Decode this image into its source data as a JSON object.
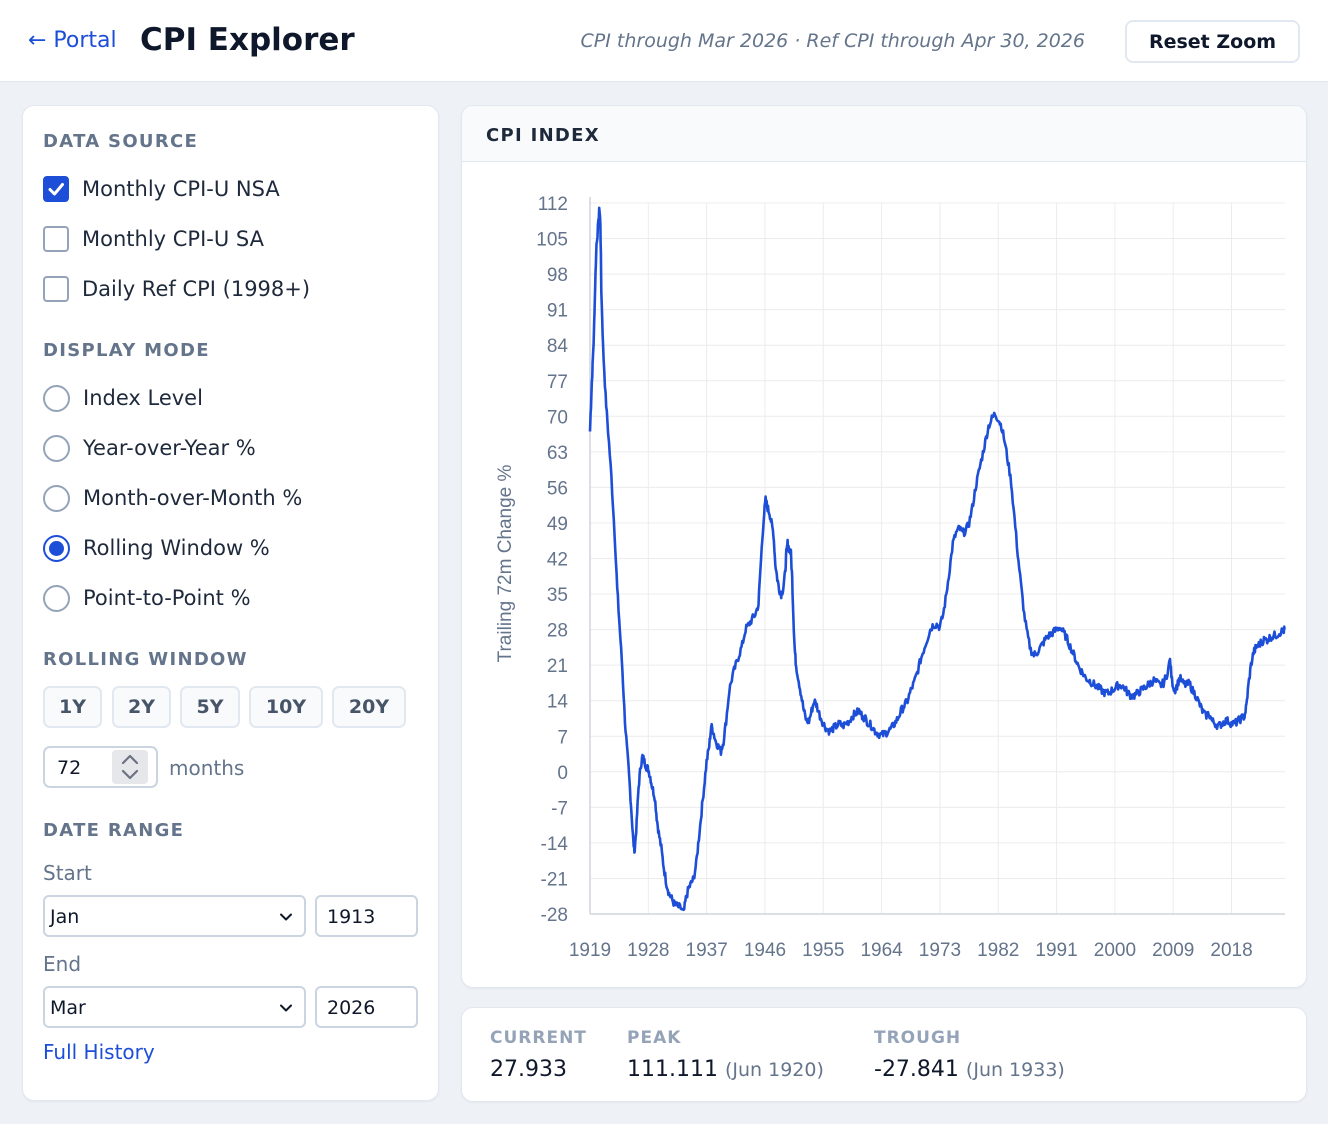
{
  "header": {
    "back_label": "← Portal",
    "title": "CPI Explorer",
    "data_status": "CPI through Mar 2026 · Ref CPI through Apr 30, 2026",
    "reset_label": "Reset Zoom"
  },
  "sidebar": {
    "data_source_title": "DATA SOURCE",
    "sources": [
      {
        "label": "Monthly CPI-U NSA",
        "checked": true
      },
      {
        "label": "Monthly CPI-U SA",
        "checked": false
      },
      {
        "label": "Daily Ref CPI (1998+)",
        "checked": false
      }
    ],
    "display_mode_title": "DISPLAY MODE",
    "modes": [
      {
        "label": "Index Level",
        "selected": false
      },
      {
        "label": "Year-over-Year %",
        "selected": false
      },
      {
        "label": "Month-over-Month %",
        "selected": false
      },
      {
        "label": "Rolling Window %",
        "selected": true
      },
      {
        "label": "Point-to-Point %",
        "selected": false
      }
    ],
    "rolling_window_title": "ROLLING WINDOW",
    "window_buttons": [
      "1Y",
      "2Y",
      "5Y",
      "10Y",
      "20Y"
    ],
    "months_value": "72",
    "months_unit": "months",
    "date_range_title": "DATE RANGE",
    "start_label": "Start",
    "start_month": "Jan",
    "start_year": "1913",
    "end_label": "End",
    "end_month": "Mar",
    "end_year": "2026",
    "full_history_label": "Full History"
  },
  "chart": {
    "panel_title": "CPI INDEX"
  },
  "stats": {
    "current_label": "CURRENT",
    "current_value": "27.933",
    "peak_label": "PEAK",
    "peak_value": "111.111",
    "peak_date": "(Jun 1920)",
    "trough_label": "TROUGH",
    "trough_value": "-27.841",
    "trough_date": "(Jun 1933)"
  },
  "colors": {
    "accent": "#1d4ed8",
    "line": "#1d4ed8",
    "grid": "#ececec"
  },
  "chart_data": {
    "type": "line",
    "title": "CPI INDEX",
    "ylabel": "Trailing 72m Change %",
    "xlabel": "",
    "ylim": [
      -28,
      112
    ],
    "xlim": [
      1919,
      2026.25
    ],
    "y_ticks": [
      112,
      105,
      98,
      91,
      84,
      77,
      70,
      63,
      56,
      49,
      42,
      35,
      28,
      21,
      14,
      7,
      0,
      -7,
      -14,
      -21,
      -28
    ],
    "x_ticks": [
      1919,
      1928,
      1937,
      1946,
      1955,
      1964,
      1973,
      1982,
      1991,
      2000,
      2009,
      2018
    ],
    "grid": true,
    "series": [
      {
        "name": "Trailing 72m Change %",
        "points": [
          [
            1919.0,
            67
          ],
          [
            1919.2,
            74
          ],
          [
            1919.4,
            80
          ],
          [
            1919.6,
            86
          ],
          [
            1919.8,
            96
          ],
          [
            1920.0,
            104
          ],
          [
            1920.3,
            108
          ],
          [
            1920.45,
            111.1
          ],
          [
            1920.6,
            108
          ],
          [
            1920.75,
            95
          ],
          [
            1921.0,
            84
          ],
          [
            1921.4,
            74
          ],
          [
            1921.8,
            67
          ],
          [
            1922.3,
            58
          ],
          [
            1922.8,
            47
          ],
          [
            1923.2,
            36
          ],
          [
            1923.6,
            28
          ],
          [
            1924.0,
            20
          ],
          [
            1924.4,
            10
          ],
          [
            1924.8,
            3
          ],
          [
            1925.1,
            -2
          ],
          [
            1925.4,
            -8
          ],
          [
            1925.7,
            -14
          ],
          [
            1925.9,
            -15.5
          ],
          [
            1926.2,
            -10
          ],
          [
            1926.5,
            -3
          ],
          [
            1926.8,
            1
          ],
          [
            1927.1,
            3
          ],
          [
            1927.4,
            2
          ],
          [
            1927.7,
            1
          ],
          [
            1928.0,
            0.5
          ],
          [
            1928.3,
            -1
          ],
          [
            1928.6,
            -3
          ],
          [
            1929.0,
            -5
          ],
          [
            1929.3,
            -9
          ],
          [
            1929.6,
            -12
          ],
          [
            1930.0,
            -15
          ],
          [
            1930.4,
            -19
          ],
          [
            1930.8,
            -22
          ],
          [
            1931.2,
            -24
          ],
          [
            1931.6,
            -25
          ],
          [
            1932.0,
            -26
          ],
          [
            1932.5,
            -26.5
          ],
          [
            1933.0,
            -26.8
          ],
          [
            1933.45,
            -27.84
          ],
          [
            1933.8,
            -25
          ],
          [
            1934.2,
            -23
          ],
          [
            1934.6,
            -22
          ],
          [
            1935.0,
            -21
          ],
          [
            1935.4,
            -18
          ],
          [
            1935.8,
            -13
          ],
          [
            1936.2,
            -8
          ],
          [
            1936.6,
            -3
          ],
          [
            1937.0,
            2
          ],
          [
            1937.4,
            5
          ],
          [
            1937.7,
            9
          ],
          [
            1938.0,
            8
          ],
          [
            1938.4,
            6
          ],
          [
            1938.8,
            5
          ],
          [
            1939.2,
            4
          ],
          [
            1939.6,
            6
          ],
          [
            1940.0,
            10
          ],
          [
            1940.5,
            16
          ],
          [
            1941.0,
            19
          ],
          [
            1941.5,
            21
          ],
          [
            1942.0,
            23
          ],
          [
            1942.5,
            25
          ],
          [
            1943.0,
            28
          ],
          [
            1943.5,
            29
          ],
          [
            1944.0,
            30
          ],
          [
            1944.5,
            31
          ],
          [
            1945.0,
            33
          ],
          [
            1945.4,
            42
          ],
          [
            1945.8,
            50
          ],
          [
            1946.1,
            53.5
          ],
          [
            1946.4,
            52
          ],
          [
            1946.7,
            51
          ],
          [
            1947.0,
            49
          ],
          [
            1947.3,
            47
          ],
          [
            1947.6,
            41
          ],
          [
            1947.9,
            38
          ],
          [
            1948.2,
            36
          ],
          [
            1948.5,
            35
          ],
          [
            1948.8,
            36
          ],
          [
            1949.1,
            39
          ],
          [
            1949.3,
            43
          ],
          [
            1949.5,
            45
          ],
          [
            1949.7,
            44
          ],
          [
            1950.0,
            43
          ],
          [
            1950.2,
            38
          ],
          [
            1950.4,
            30
          ],
          [
            1950.6,
            24
          ],
          [
            1950.8,
            21
          ],
          [
            1951.2,
            18
          ],
          [
            1951.6,
            15
          ],
          [
            1952.0,
            12
          ],
          [
            1952.4,
            10
          ],
          [
            1952.8,
            10
          ],
          [
            1953.2,
            12
          ],
          [
            1953.6,
            14
          ],
          [
            1954.0,
            13
          ],
          [
            1954.5,
            11
          ],
          [
            1955.0,
            9.5
          ],
          [
            1955.5,
            8.5
          ],
          [
            1956.0,
            8
          ],
          [
            1956.5,
            8.5
          ],
          [
            1957.0,
            9
          ],
          [
            1957.5,
            9.5
          ],
          [
            1958.0,
            9
          ],
          [
            1958.5,
            9.5
          ],
          [
            1959.0,
            10
          ],
          [
            1959.5,
            11
          ],
          [
            1960.0,
            11.5
          ],
          [
            1960.5,
            12
          ],
          [
            1961.0,
            11
          ],
          [
            1961.5,
            10.5
          ],
          [
            1962.0,
            9.5
          ],
          [
            1962.5,
            9
          ],
          [
            1963.0,
            8
          ],
          [
            1963.5,
            7.5
          ],
          [
            1964.0,
            7.2
          ],
          [
            1964.5,
            7.5
          ],
          [
            1965.0,
            8
          ],
          [
            1965.5,
            8.5
          ],
          [
            1966.0,
            9.5
          ],
          [
            1966.5,
            10.5
          ],
          [
            1967.0,
            12
          ],
          [
            1967.5,
            13
          ],
          [
            1968.0,
            14
          ],
          [
            1968.5,
            16
          ],
          [
            1969.0,
            17.5
          ],
          [
            1969.5,
            19.5
          ],
          [
            1970.0,
            22
          ],
          [
            1970.5,
            24
          ],
          [
            1971.0,
            26
          ],
          [
            1971.5,
            28
          ],
          [
            1972.0,
            29
          ],
          [
            1972.5,
            29
          ],
          [
            1973.0,
            28.5
          ],
          [
            1973.5,
            31
          ],
          [
            1974.0,
            35
          ],
          [
            1974.5,
            40
          ],
          [
            1975.0,
            45
          ],
          [
            1975.5,
            47
          ],
          [
            1976.0,
            48
          ],
          [
            1976.5,
            47
          ],
          [
            1977.0,
            47.5
          ],
          [
            1977.5,
            49
          ],
          [
            1978.0,
            52
          ],
          [
            1978.5,
            56
          ],
          [
            1979.0,
            59
          ],
          [
            1979.5,
            62
          ],
          [
            1980.0,
            65
          ],
          [
            1980.5,
            68
          ],
          [
            1981.0,
            69.5
          ],
          [
            1981.5,
            70.5
          ],
          [
            1982.0,
            69.5
          ],
          [
            1982.5,
            68
          ],
          [
            1983.0,
            65
          ],
          [
            1983.5,
            61
          ],
          [
            1984.0,
            57
          ],
          [
            1984.5,
            50
          ],
          [
            1985.0,
            43
          ],
          [
            1985.5,
            37
          ],
          [
            1986.0,
            31
          ],
          [
            1986.5,
            27
          ],
          [
            1987.0,
            24
          ],
          [
            1987.5,
            23
          ],
          [
            1988.0,
            23.5
          ],
          [
            1988.5,
            24.5
          ],
          [
            1989.0,
            25.5
          ],
          [
            1989.5,
            26.5
          ],
          [
            1990.0,
            27
          ],
          [
            1990.5,
            27.5
          ],
          [
            1991.0,
            28
          ],
          [
            1991.5,
            28.5
          ],
          [
            1992.0,
            27.5
          ],
          [
            1992.5,
            26.5
          ],
          [
            1993.0,
            25
          ],
          [
            1993.5,
            23.5
          ],
          [
            1994.0,
            22
          ],
          [
            1994.5,
            20.5
          ],
          [
            1995.0,
            19.5
          ],
          [
            1995.5,
            18.5
          ],
          [
            1996.0,
            18
          ],
          [
            1996.5,
            17.5
          ],
          [
            1997.0,
            17
          ],
          [
            1997.5,
            16.5
          ],
          [
            1998.0,
            16
          ],
          [
            1998.5,
            15.5
          ],
          [
            1999.0,
            15.5
          ],
          [
            1999.5,
            16
          ],
          [
            2000.0,
            16.5
          ],
          [
            2000.5,
            17
          ],
          [
            2001.0,
            17
          ],
          [
            2001.5,
            16.5
          ],
          [
            2002.0,
            15.5
          ],
          [
            2002.5,
            15
          ],
          [
            2003.0,
            15
          ],
          [
            2003.5,
            15.5
          ],
          [
            2004.0,
            16
          ],
          [
            2004.5,
            16.5
          ],
          [
            2005.0,
            17
          ],
          [
            2005.5,
            17.5
          ],
          [
            2006.0,
            18
          ],
          [
            2006.5,
            17.5
          ],
          [
            2007.0,
            17
          ],
          [
            2007.5,
            17.5
          ],
          [
            2008.0,
            19
          ],
          [
            2008.5,
            22
          ],
          [
            2008.8,
            18
          ],
          [
            2009.2,
            16
          ],
          [
            2009.6,
            17
          ],
          [
            2010.0,
            18.5
          ],
          [
            2010.5,
            17.5
          ],
          [
            2011.0,
            17
          ],
          [
            2011.5,
            17.5
          ],
          [
            2012.0,
            16
          ],
          [
            2012.5,
            15
          ],
          [
            2013.0,
            13.5
          ],
          [
            2013.5,
            12
          ],
          [
            2014.0,
            11
          ],
          [
            2014.5,
            11.5
          ],
          [
            2015.0,
            10
          ],
          [
            2015.5,
            9.5
          ],
          [
            2016.0,
            9
          ],
          [
            2016.5,
            9.5
          ],
          [
            2017.0,
            10
          ],
          [
            2017.5,
            10
          ],
          [
            2018.0,
            9.5
          ],
          [
            2018.5,
            9.5
          ],
          [
            2019.0,
            10
          ],
          [
            2019.5,
            10.5
          ],
          [
            2020.0,
            11
          ],
          [
            2020.3,
            13
          ],
          [
            2020.6,
            17
          ],
          [
            2021.0,
            21
          ],
          [
            2021.4,
            23.5
          ],
          [
            2021.8,
            24.5
          ],
          [
            2022.2,
            25
          ],
          [
            2022.6,
            25.5
          ],
          [
            2023.0,
            26
          ],
          [
            2023.5,
            26
          ],
          [
            2024.0,
            26.5
          ],
          [
            2024.5,
            26.8
          ],
          [
            2025.0,
            27
          ],
          [
            2025.5,
            27.5
          ],
          [
            2026.0,
            27.8
          ],
          [
            2026.25,
            27.933
          ]
        ]
      }
    ]
  }
}
